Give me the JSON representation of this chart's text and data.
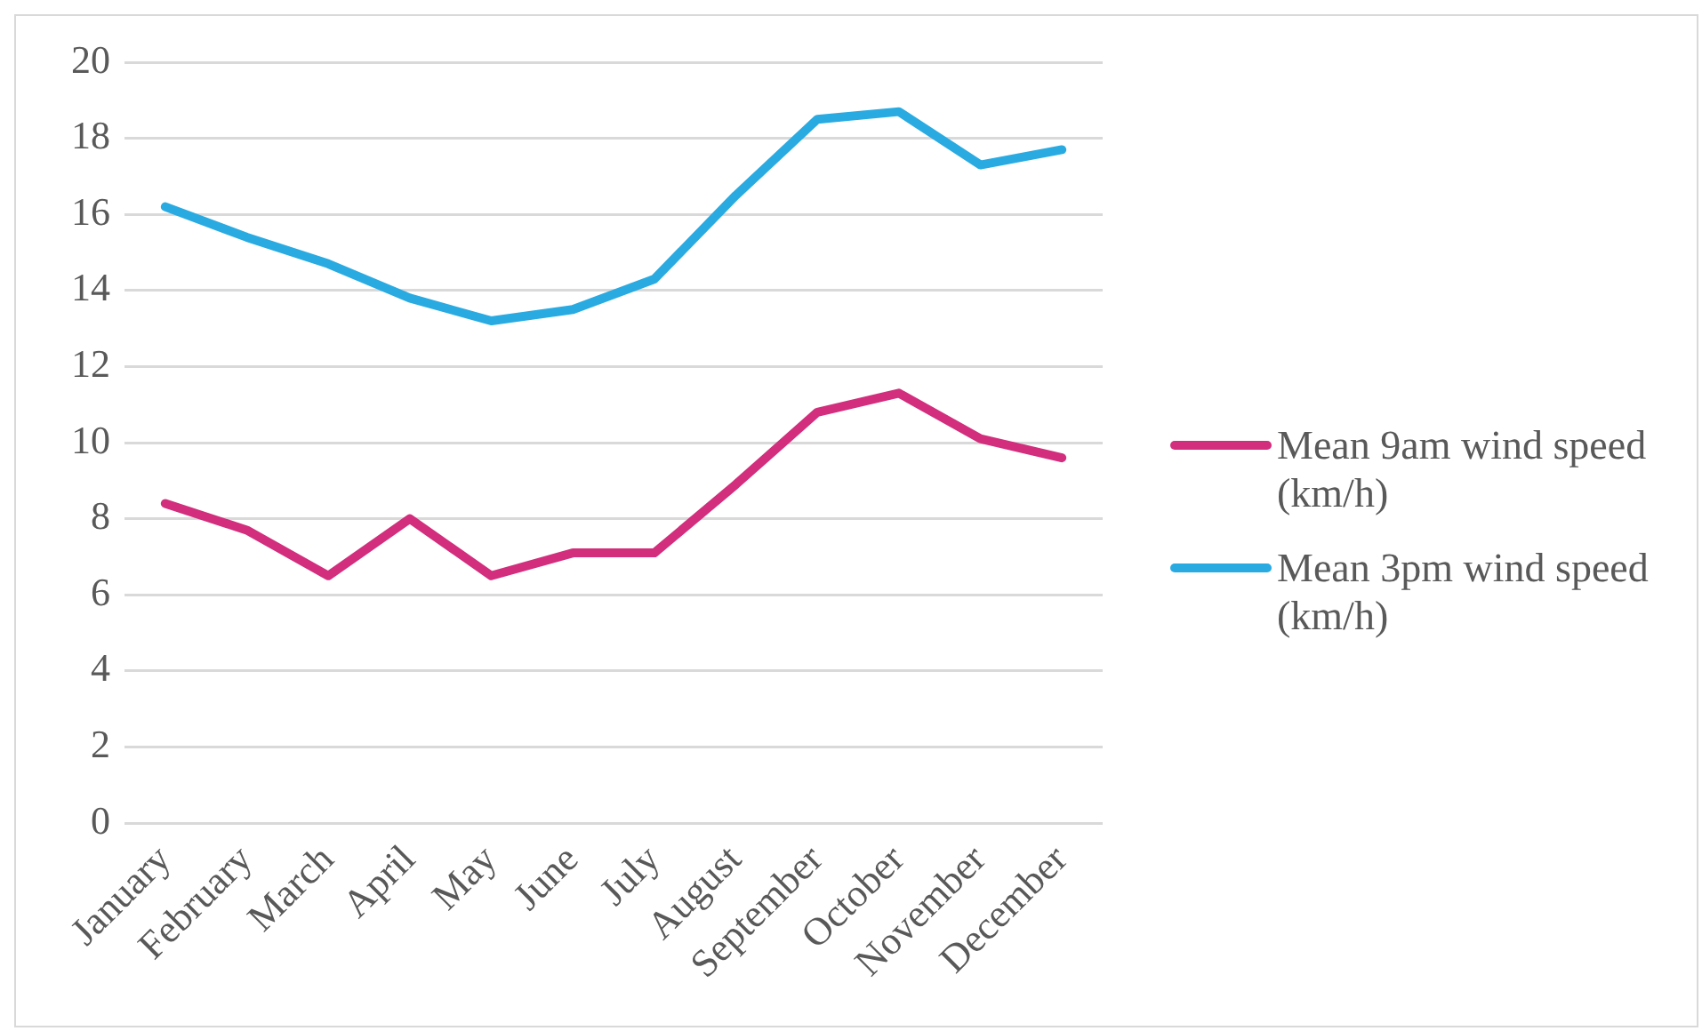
{
  "chart_data": {
    "type": "line",
    "categories": [
      "January",
      "February",
      "March",
      "April",
      "May",
      "June",
      "July",
      "August",
      "September",
      "October",
      "November",
      "December"
    ],
    "series": [
      {
        "name": "Mean 9am wind speed (km/h)",
        "color": "#d22e7d",
        "values": [
          8.4,
          7.7,
          6.5,
          8.0,
          6.5,
          7.1,
          7.1,
          8.9,
          10.8,
          11.3,
          10.1,
          9.6
        ]
      },
      {
        "name": "Mean 3pm wind speed (km/h)",
        "color": "#29abe2",
        "values": [
          16.2,
          15.4,
          14.7,
          13.8,
          13.2,
          13.5,
          14.3,
          16.5,
          18.5,
          18.7,
          17.3,
          17.7
        ]
      }
    ],
    "ylim": [
      0,
      20
    ],
    "yticks": [
      0,
      2,
      4,
      6,
      8,
      10,
      12,
      14,
      16,
      18,
      20
    ],
    "grid": "y",
    "legend": "right",
    "marker": "none"
  }
}
